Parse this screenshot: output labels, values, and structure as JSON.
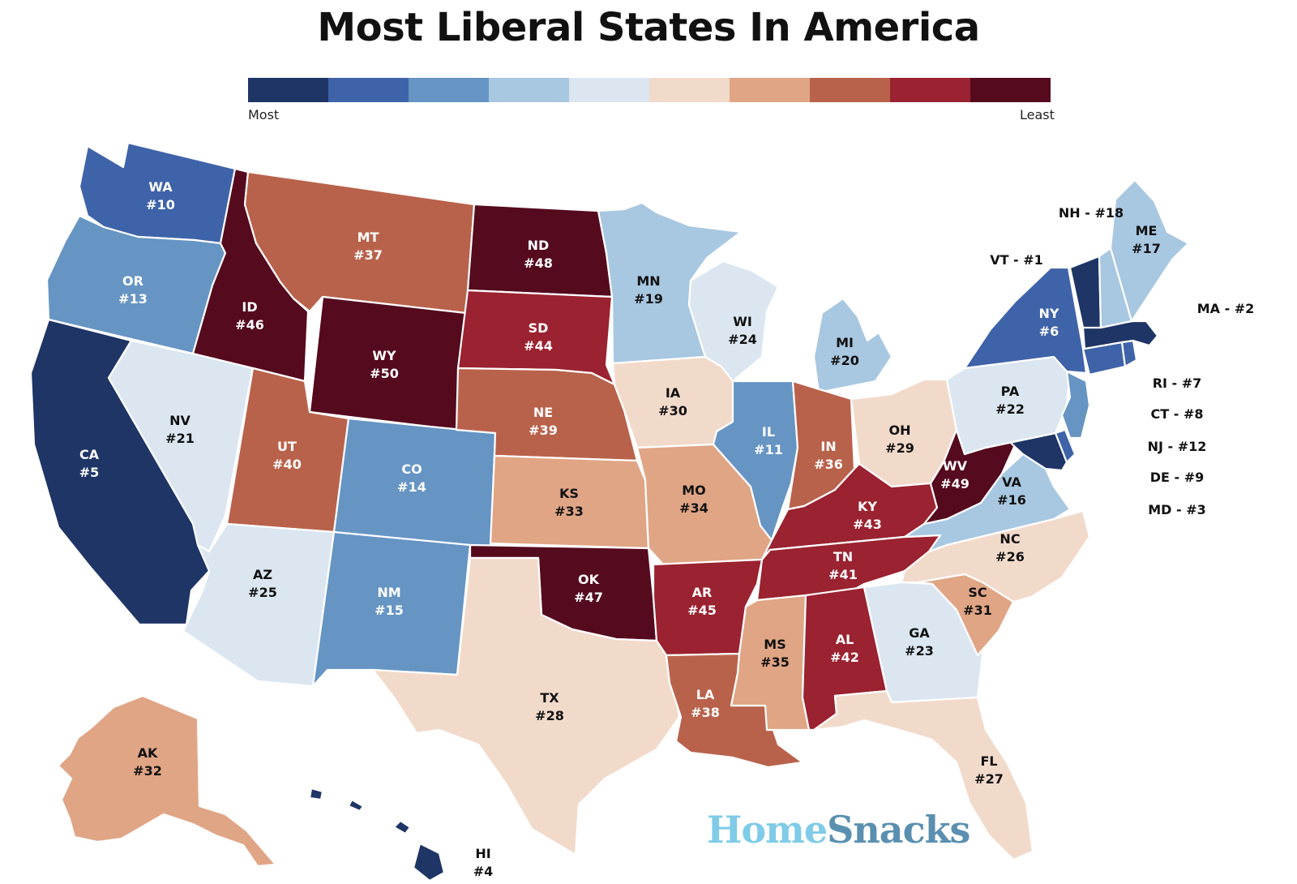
{
  "title": "Most Liberal States In America",
  "legend": {
    "colors": [
      "#1f3566",
      "#3f63a8",
      "#6695c4",
      "#a8c7e1",
      "#dbe6f0",
      "#f2dacb",
      "#e0a585",
      "#b9624b",
      "#9b2230",
      "#550a1e"
    ],
    "most_label": "Most",
    "least_label": "Least"
  },
  "brand": {
    "part1": "Home",
    "part2": "Snacks"
  },
  "states": [
    {
      "abbr": "WA",
      "rank": "#10",
      "color": "#3f63a8"
    },
    {
      "abbr": "OR",
      "rank": "#13",
      "color": "#6695c4"
    },
    {
      "abbr": "CA",
      "rank": "#5",
      "color": "#1f3566"
    },
    {
      "abbr": "NV",
      "rank": "#21",
      "color": "#dbe6f0"
    },
    {
      "abbr": "ID",
      "rank": "#46",
      "color": "#550a1e"
    },
    {
      "abbr": "MT",
      "rank": "#37",
      "color": "#b9624b"
    },
    {
      "abbr": "WY",
      "rank": "#50",
      "color": "#550a1e"
    },
    {
      "abbr": "UT",
      "rank": "#40",
      "color": "#b9624b"
    },
    {
      "abbr": "AZ",
      "rank": "#25",
      "color": "#dbe6f0"
    },
    {
      "abbr": "CO",
      "rank": "#14",
      "color": "#6695c4"
    },
    {
      "abbr": "NM",
      "rank": "#15",
      "color": "#6695c4"
    },
    {
      "abbr": "ND",
      "rank": "#48",
      "color": "#550a1e"
    },
    {
      "abbr": "SD",
      "rank": "#44",
      "color": "#9b2230"
    },
    {
      "abbr": "NE",
      "rank": "#39",
      "color": "#b9624b"
    },
    {
      "abbr": "KS",
      "rank": "#33",
      "color": "#e0a585"
    },
    {
      "abbr": "OK",
      "rank": "#47",
      "color": "#550a1e"
    },
    {
      "abbr": "TX",
      "rank": "#28",
      "color": "#f2dacb"
    },
    {
      "abbr": "MN",
      "rank": "#19",
      "color": "#a8c7e1"
    },
    {
      "abbr": "IA",
      "rank": "#30",
      "color": "#f2dacb"
    },
    {
      "abbr": "MO",
      "rank": "#34",
      "color": "#e0a585"
    },
    {
      "abbr": "AR",
      "rank": "#45",
      "color": "#9b2230"
    },
    {
      "abbr": "LA",
      "rank": "#38",
      "color": "#b9624b"
    },
    {
      "abbr": "WI",
      "rank": "#24",
      "color": "#dbe6f0"
    },
    {
      "abbr": "IL",
      "rank": "#11",
      "color": "#6695c4"
    },
    {
      "abbr": "MI",
      "rank": "#20",
      "color": "#a8c7e1"
    },
    {
      "abbr": "IN",
      "rank": "#36",
      "color": "#b9624b"
    },
    {
      "abbr": "OH",
      "rank": "#29",
      "color": "#f2dacb"
    },
    {
      "abbr": "KY",
      "rank": "#43",
      "color": "#9b2230"
    },
    {
      "abbr": "TN",
      "rank": "#41",
      "color": "#9b2230"
    },
    {
      "abbr": "MS",
      "rank": "#35",
      "color": "#e0a585"
    },
    {
      "abbr": "AL",
      "rank": "#42",
      "color": "#9b2230"
    },
    {
      "abbr": "GA",
      "rank": "#23",
      "color": "#dbe6f0"
    },
    {
      "abbr": "FL",
      "rank": "#27",
      "color": "#f2dacb"
    },
    {
      "abbr": "SC",
      "rank": "#31",
      "color": "#e0a585"
    },
    {
      "abbr": "NC",
      "rank": "#26",
      "color": "#f2dacb"
    },
    {
      "abbr": "VA",
      "rank": "#16",
      "color": "#a8c7e1"
    },
    {
      "abbr": "WV",
      "rank": "#49",
      "color": "#550a1e"
    },
    {
      "abbr": "PA",
      "rank": "#22",
      "color": "#dbe6f0"
    },
    {
      "abbr": "NY",
      "rank": "#6",
      "color": "#3f63a8"
    },
    {
      "abbr": "ME",
      "rank": "#17",
      "color": "#a8c7e1"
    },
    {
      "abbr": "AK",
      "rank": "#32",
      "color": "#e0a585"
    },
    {
      "abbr": "HI",
      "rank": "#4",
      "color": "#1f3566"
    }
  ],
  "small_states": [
    {
      "abbr": "VT",
      "rank": "#1",
      "color": "#1f3566",
      "text": "VT - #1"
    },
    {
      "abbr": "NH",
      "rank": "#18",
      "color": "#a8c7e1",
      "text": "NH - #18"
    },
    {
      "abbr": "MA",
      "rank": "#2",
      "color": "#1f3566",
      "text": "MA - #2"
    },
    {
      "abbr": "RI",
      "rank": "#7",
      "color": "#3f63a8",
      "text": "RI - #7"
    },
    {
      "abbr": "CT",
      "rank": "#8",
      "color": "#3f63a8",
      "text": "CT - #8"
    },
    {
      "abbr": "NJ",
      "rank": "#12",
      "color": "#6695c4",
      "text": "NJ - #12"
    },
    {
      "abbr": "DE",
      "rank": "#9",
      "color": "#3f63a8",
      "text": "DE - #9"
    },
    {
      "abbr": "MD",
      "rank": "#3",
      "color": "#1f3566",
      "text": "MD - #3"
    }
  ]
}
